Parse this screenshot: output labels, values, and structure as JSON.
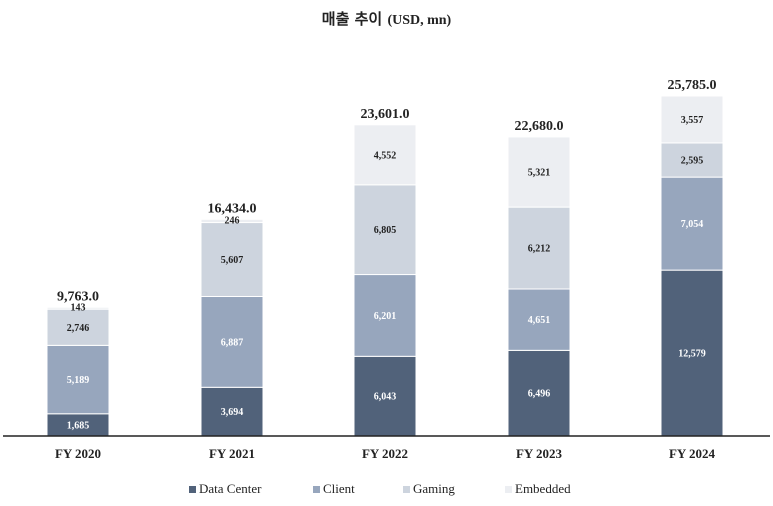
{
  "chart_data": {
    "type": "bar",
    "stacked": true,
    "title": "매출 추이",
    "title_unit": "(USD, mn)",
    "categories": [
      "FY 2020",
      "FY 2021",
      "FY 2022",
      "FY 2023",
      "FY 2024"
    ],
    "series": [
      {
        "name": "Data Center",
        "color": "#51627a",
        "label_color": "#ffffff",
        "values": [
          1685,
          3694,
          6043,
          6496,
          12579
        ],
        "labels": [
          "1,685",
          "3,694",
          "6,043",
          "6,496",
          "12,579"
        ]
      },
      {
        "name": "Client",
        "color": "#97a6bd",
        "label_color": "#ffffff",
        "values": [
          5189,
          6887,
          6201,
          4651,
          7054
        ],
        "labels": [
          "5,189",
          "6,887",
          "6,201",
          "4,651",
          "7,054"
        ]
      },
      {
        "name": "Gaming",
        "color": "#cdd4de",
        "label_color": "#222222",
        "values": [
          2746,
          5607,
          6805,
          6212,
          2595
        ],
        "labels": [
          "2,746",
          "5,607",
          "6,805",
          "6,212",
          "2,595"
        ]
      },
      {
        "name": "Embedded",
        "color": "#eceef2",
        "label_color": "#222222",
        "values": [
          143,
          246,
          4552,
          5321,
          3557
        ],
        "labels": [
          "143",
          "246",
          "4,552",
          "5,321",
          "3,557"
        ]
      }
    ],
    "totals": [
      9763.0,
      16434.0,
      23601.0,
      22680.0,
      25785.0
    ],
    "total_labels": [
      "9,763.0",
      "16,434.0",
      "23,601.0",
      "22,680.0",
      "25,785.0"
    ],
    "ylim": [
      0,
      30000
    ],
    "grid": false,
    "legend_position": "bottom"
  }
}
